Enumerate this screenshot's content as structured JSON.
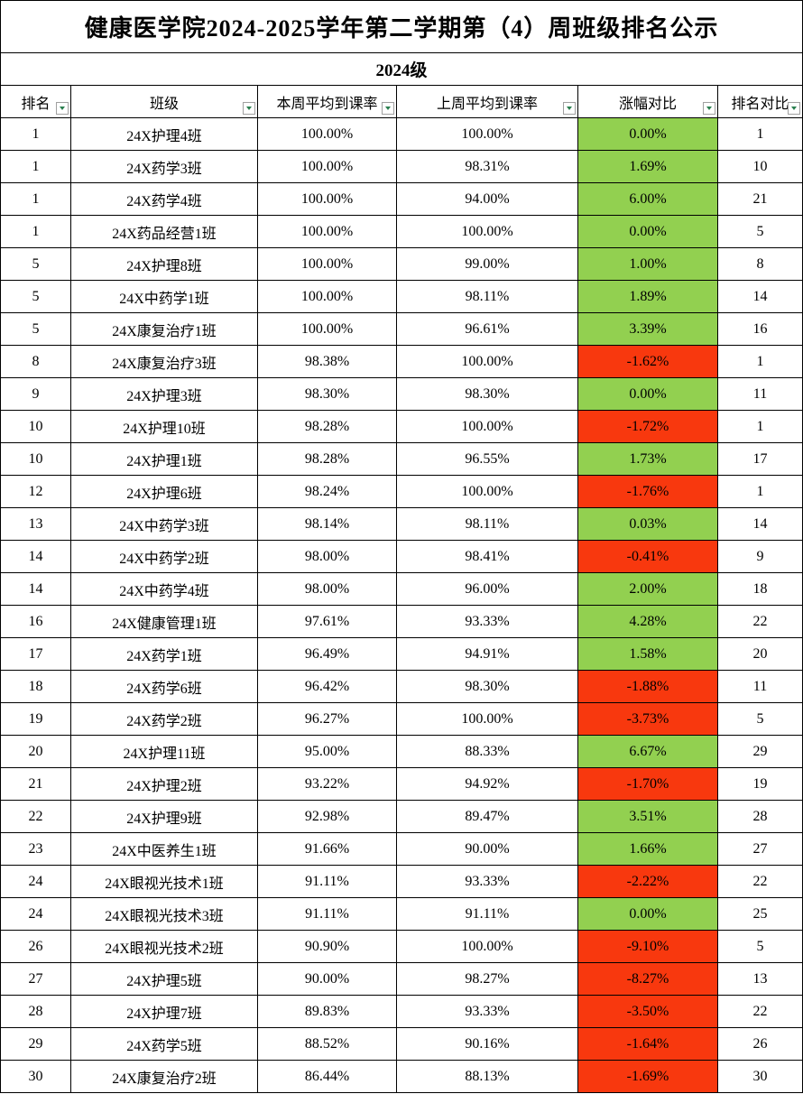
{
  "title": "健康医学院2024-2025学年第二学期第（4）周班级排名公示",
  "subtitle": "2024级",
  "table": {
    "header": [
      "排名",
      "班级",
      "本周平均到课率",
      "上周平均到课率",
      "涨幅对比",
      "排名对比"
    ],
    "rows": [
      [
        "1",
        "24X护理4班",
        "100.00%",
        "100.00%",
        "0.00%",
        "1"
      ],
      [
        "1",
        "24X药学3班",
        "100.00%",
        "98.31%",
        "1.69%",
        "10"
      ],
      [
        "1",
        "24X药学4班",
        "100.00%",
        "94.00%",
        "6.00%",
        "21"
      ],
      [
        "1",
        "24X药品经营1班",
        "100.00%",
        "100.00%",
        "0.00%",
        "5"
      ],
      [
        "5",
        "24X护理8班",
        "100.00%",
        "99.00%",
        "1.00%",
        "8"
      ],
      [
        "5",
        "24X中药学1班",
        "100.00%",
        "98.11%",
        "1.89%",
        "14"
      ],
      [
        "5",
        "24X康复治疗1班",
        "100.00%",
        "96.61%",
        "3.39%",
        "16"
      ],
      [
        "8",
        "24X康复治疗3班",
        "98.38%",
        "100.00%",
        "-1.62%",
        "1"
      ],
      [
        "9",
        "24X护理3班",
        "98.30%",
        "98.30%",
        "0.00%",
        "11"
      ],
      [
        "10",
        "24X护理10班",
        "98.28%",
        "100.00%",
        "-1.72%",
        "1"
      ],
      [
        "10",
        "24X护理1班",
        "98.28%",
        "96.55%",
        "1.73%",
        "17"
      ],
      [
        "12",
        "24X护理6班",
        "98.24%",
        "100.00%",
        "-1.76%",
        "1"
      ],
      [
        "13",
        "24X中药学3班",
        "98.14%",
        "98.11%",
        "0.03%",
        "14"
      ],
      [
        "14",
        "24X中药学2班",
        "98.00%",
        "98.41%",
        "-0.41%",
        "9"
      ],
      [
        "14",
        "24X中药学4班",
        "98.00%",
        "96.00%",
        "2.00%",
        "18"
      ],
      [
        "16",
        "24X健康管理1班",
        "97.61%",
        "93.33%",
        "4.28%",
        "22"
      ],
      [
        "17",
        "24X药学1班",
        "96.49%",
        "94.91%",
        "1.58%",
        "20"
      ],
      [
        "18",
        "24X药学6班",
        "96.42%",
        "98.30%",
        "-1.88%",
        "11"
      ],
      [
        "19",
        "24X药学2班",
        "96.27%",
        "100.00%",
        "-3.73%",
        "5"
      ],
      [
        "20",
        "24X护理11班",
        "95.00%",
        "88.33%",
        "6.67%",
        "29"
      ],
      [
        "21",
        "24X护理2班",
        "93.22%",
        "94.92%",
        "-1.70%",
        "19"
      ],
      [
        "22",
        "24X护理9班",
        "92.98%",
        "89.47%",
        "3.51%",
        "28"
      ],
      [
        "23",
        "24X中医养生1班",
        "91.66%",
        "90.00%",
        "1.66%",
        "27"
      ],
      [
        "24",
        "24X眼视光技术1班",
        "91.11%",
        "93.33%",
        "-2.22%",
        "22"
      ],
      [
        "24",
        "24X眼视光技术3班",
        "91.11%",
        "91.11%",
        "0.00%",
        "25"
      ],
      [
        "26",
        "24X眼视光技术2班",
        "90.90%",
        "100.00%",
        "-9.10%",
        "5"
      ],
      [
        "27",
        "24X护理5班",
        "90.00%",
        "98.27%",
        "-8.27%",
        "13"
      ],
      [
        "28",
        "24X护理7班",
        "89.83%",
        "93.33%",
        "-3.50%",
        "22"
      ],
      [
        "29",
        "24X药学5班",
        "88.52%",
        "90.16%",
        "-1.64%",
        "26"
      ],
      [
        "30",
        "24X康复治疗2班",
        "86.44%",
        "88.13%",
        "-1.69%",
        "30"
      ]
    ]
  }
}
